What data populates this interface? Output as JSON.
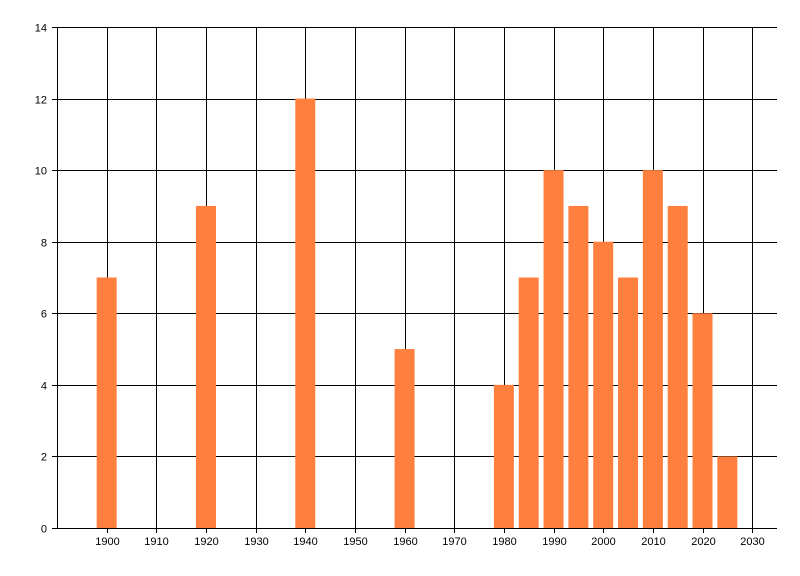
{
  "chart_data": {
    "type": "bar",
    "title": "",
    "xlabel": "",
    "ylabel": "",
    "x": [
      1900,
      1920,
      1940,
      1960,
      1980,
      1985,
      1990,
      1995,
      2000,
      2005,
      2010,
      2015,
      2020,
      2025
    ],
    "values": [
      7,
      9,
      12,
      5,
      4,
      7,
      10,
      9,
      8,
      7,
      10,
      9,
      6,
      2
    ],
    "xlim": [
      1890,
      2035
    ],
    "ylim": [
      0,
      14
    ],
    "x_ticks": [
      1900,
      1910,
      1920,
      1930,
      1940,
      1950,
      1960,
      1970,
      1980,
      1990,
      2000,
      2010,
      2020,
      2030
    ],
    "y_ticks": [
      0,
      2,
      4,
      6,
      8,
      10,
      12,
      14
    ],
    "bar_color": "#ff7f3f",
    "grid": true,
    "grid_color": "#000000"
  }
}
